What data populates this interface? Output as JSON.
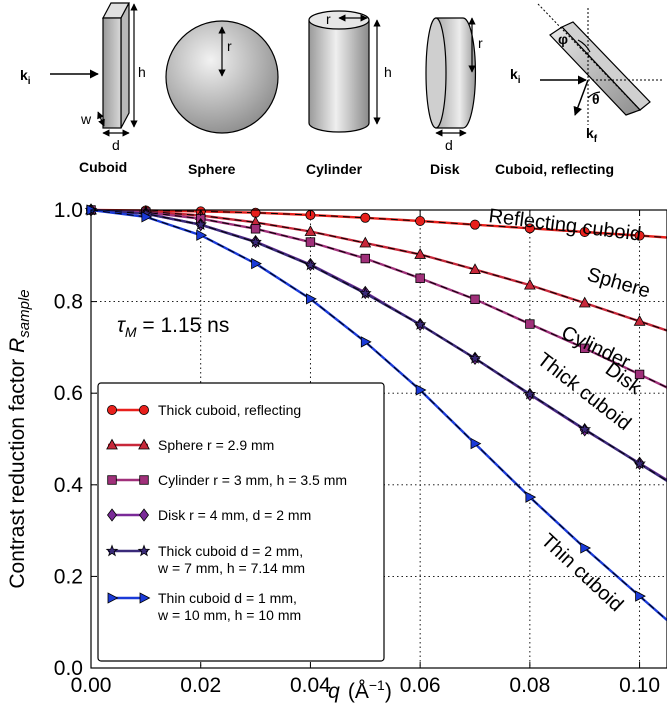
{
  "shapes_panel": {
    "cuboid": {
      "label": "Cuboid",
      "dims": [
        "h",
        "w",
        "d"
      ],
      "incident": "k",
      "incident_sub": "i"
    },
    "sphere": {
      "label": "Sphere",
      "dims": [
        "r"
      ]
    },
    "cylinder": {
      "label": "Cylinder",
      "dims": [
        "r",
        "h"
      ]
    },
    "disk": {
      "label": "Disk",
      "dims": [
        "r",
        "d"
      ]
    },
    "cuboid_reflecting": {
      "label": "Cuboid, reflecting",
      "angle1": "φ",
      "angle2": "θ",
      "incident": "k",
      "incident_sub": "i",
      "final": "k",
      "final_sub": "f"
    }
  },
  "tau_annotation": {
    "symbol": "τ",
    "sub": "M",
    "text": " = 1.15 ns"
  },
  "chart_data": {
    "type": "line",
    "xlabel_var": "q",
    "xlabel_unit": "(Å",
    "xlabel_exp": "−1",
    "xlabel_close": ")",
    "ylabel_main": "Contrast reduction factor ",
    "ylabel_var": "R",
    "ylabel_sub": "sample",
    "xlim": [
      0.0,
      0.105
    ],
    "ylim": [
      0.0,
      1.0
    ],
    "xticks": [
      "0.00",
      "0.02",
      "0.04",
      "0.06",
      "0.08",
      "0.10"
    ],
    "yticks": [
      "0.0",
      "0.2",
      "0.4",
      "0.6",
      "0.8",
      "1.0"
    ],
    "grid": "dotted",
    "legend_position": "lower-left",
    "series": [
      {
        "name": "Thick cuboid, reflecting",
        "name2": "",
        "inline_label": "Reflecting cuboid",
        "color": "#e8201c",
        "marker": "circle",
        "x": [
          0,
          0.01,
          0.02,
          0.03,
          0.04,
          0.05,
          0.06,
          0.07,
          0.08,
          0.09,
          0.1
        ],
        "y": [
          1.0,
          0.999,
          0.997,
          0.994,
          0.989,
          0.983,
          0.976,
          0.968,
          0.96,
          0.952,
          0.944
        ]
      },
      {
        "name": "Sphere r = 2.9 mm",
        "name2": "",
        "inline_label": "Sphere",
        "color": "#c8283a",
        "marker": "triangle",
        "x": [
          0,
          0.01,
          0.02,
          0.03,
          0.04,
          0.05,
          0.06,
          0.07,
          0.08,
          0.09,
          0.1
        ],
        "y": [
          1.0,
          0.997,
          0.988,
          0.973,
          0.953,
          0.928,
          0.903,
          0.87,
          0.836,
          0.797,
          0.757
        ]
      },
      {
        "name": "Cylinder r = 3 mm, h = 3.5 mm",
        "name2": "",
        "inline_label": "Cylinder",
        "color": "#a0307a",
        "marker": "square",
        "x": [
          0,
          0.01,
          0.02,
          0.03,
          0.04,
          0.05,
          0.06,
          0.07,
          0.08,
          0.09,
          0.1
        ],
        "y": [
          1.0,
          0.995,
          0.981,
          0.959,
          0.93,
          0.894,
          0.851,
          0.805,
          0.751,
          0.698,
          0.641
        ]
      },
      {
        "name": "Disk r = 4 mm, d = 2 mm",
        "name2": "",
        "inline_label": "Disk",
        "color": "#7a2a98",
        "marker": "diamond",
        "x": [
          0,
          0.01,
          0.02,
          0.03,
          0.04,
          0.05,
          0.06,
          0.07,
          0.08,
          0.09,
          0.1
        ],
        "y": [
          1.0,
          0.992,
          0.968,
          0.931,
          0.881,
          0.82,
          0.75,
          0.676,
          0.597,
          0.52,
          0.447
        ]
      },
      {
        "name": "Thick cuboid d = 2 mm,",
        "name2": "w = 7 mm, h = 7.14 mm",
        "inline_label": "Thick cuboid",
        "color": "#3a2a7a",
        "marker": "star",
        "x": [
          0,
          0.01,
          0.02,
          0.03,
          0.04,
          0.05,
          0.06,
          0.07,
          0.08,
          0.09,
          0.1
        ],
        "y": [
          1.0,
          0.992,
          0.968,
          0.93,
          0.88,
          0.818,
          0.75,
          0.676,
          0.598,
          0.521,
          0.446
        ]
      },
      {
        "name": "Thin cuboid d = 1 mm,",
        "name2": "w = 10 mm, h = 10 mm",
        "inline_label": "Thin cuboid",
        "color": "#1a3ad8",
        "marker": "triangle-right",
        "x": [
          0,
          0.01,
          0.02,
          0.03,
          0.04,
          0.05,
          0.06,
          0.07,
          0.08,
          0.09,
          0.1
        ],
        "y": [
          1.0,
          0.985,
          0.945,
          0.883,
          0.806,
          0.712,
          0.607,
          0.49,
          0.373,
          0.262,
          0.157
        ]
      }
    ]
  }
}
